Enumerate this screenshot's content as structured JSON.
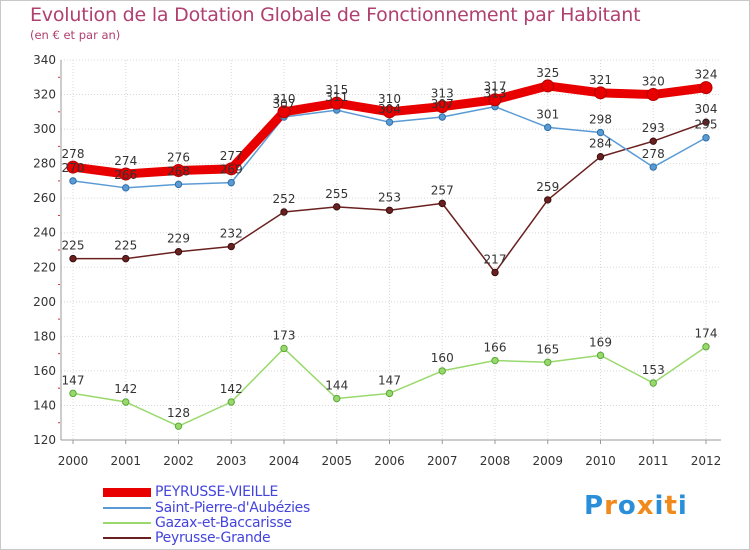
{
  "title": "Evolution de la Dotation Globale de Fonctionnement par Habitant",
  "subtitle": "(en € et par an)",
  "brand": {
    "text": "Proxiti",
    "colors": [
      "#2a8fd8",
      "#f08a1c",
      "#2a8fd8",
      "#f08a1c",
      "#2a8fd8",
      "#f08a1c",
      "#2a8fd8"
    ]
  },
  "chart_data": {
    "type": "line",
    "title": "Evolution de la Dotation Globale de Fonctionnement par Habitant",
    "subtitle": "(en € et par an)",
    "xlabel": "",
    "ylabel": "",
    "x": [
      "2000",
      "2001",
      "2002",
      "2003",
      "2004",
      "2005",
      "2006",
      "2007",
      "2008",
      "2009",
      "2010",
      "2011",
      "2012"
    ],
    "ylim": [
      120,
      340
    ],
    "yticks": [
      120,
      140,
      160,
      180,
      200,
      220,
      240,
      260,
      280,
      300,
      320,
      340
    ],
    "grid": true,
    "legend_position": "bottom-left",
    "series": [
      {
        "name": "PEYRUSSE-VIEILLE",
        "color": "#e80000",
        "values": [
          278,
          274,
          276,
          277,
          310,
          315,
          310,
          313,
          317,
          325,
          321,
          320,
          324
        ]
      },
      {
        "name": "Saint-Pierre-d'Aubézies",
        "color": "#5b9bd5",
        "values": [
          270,
          266,
          268,
          269,
          307,
          311,
          304,
          307,
          313,
          301,
          298,
          278,
          295
        ]
      },
      {
        "name": "Gazax-et-Baccarisse",
        "color": "#99d96c",
        "values": [
          147,
          142,
          128,
          142,
          173,
          144,
          147,
          160,
          166,
          165,
          169,
          153,
          174
        ]
      },
      {
        "name": "Peyrusse-Grande",
        "color": "#6b2020",
        "values": [
          225,
          225,
          229,
          232,
          252,
          255,
          253,
          257,
          217,
          259,
          284,
          293,
          304
        ]
      }
    ]
  }
}
